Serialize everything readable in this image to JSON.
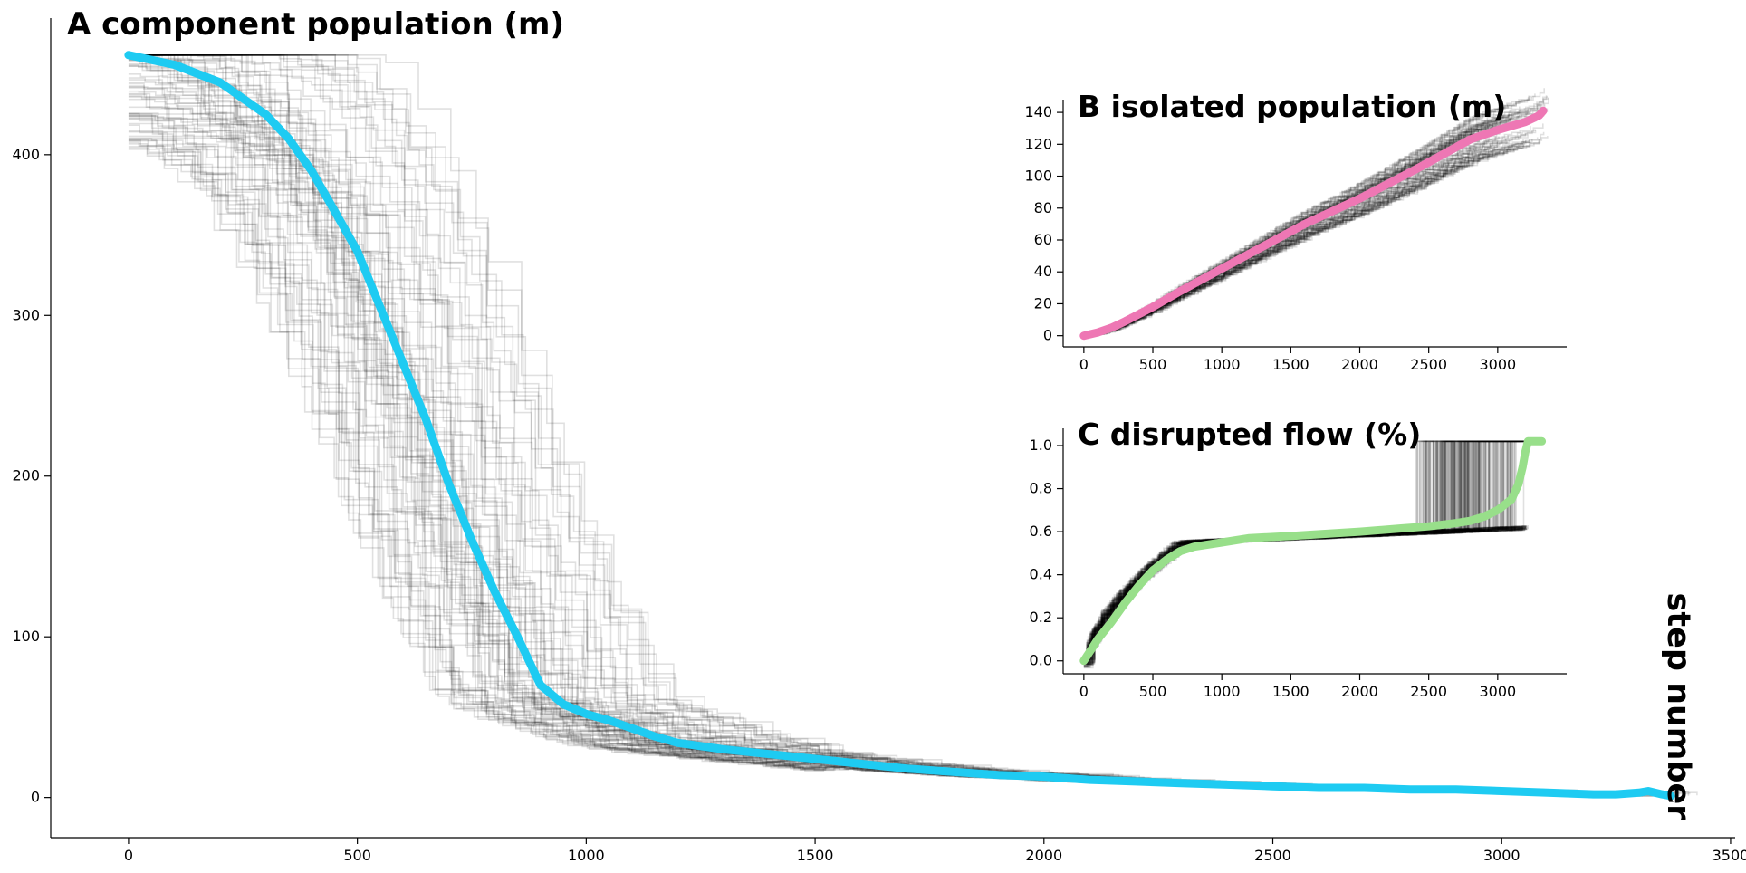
{
  "chart_data": [
    {
      "type": "line",
      "title": "A component population (m)",
      "xlabel": "step number",
      "ylabel": "",
      "xlim": [
        -170,
        3510
      ],
      "ylim": [
        -25,
        485
      ],
      "xticks": [
        0,
        500,
        1000,
        1500,
        2000,
        2500,
        3000,
        3500
      ],
      "yticks": [
        0,
        100,
        200,
        300,
        400
      ],
      "grid": false,
      "series": [
        {
          "color": "#1ecbf2",
          "x": [
            0,
            100,
            200,
            300,
            350,
            400,
            450,
            500,
            550,
            600,
            650,
            700,
            750,
            800,
            850,
            900,
            950,
            1000,
            1050,
            1100,
            1150,
            1200,
            1300,
            1400,
            1500,
            1600,
            1700,
            1800,
            1900,
            2000,
            2100,
            2200,
            2300,
            2400,
            2500,
            2600,
            2700,
            2800,
            2900,
            3000,
            3100,
            3200,
            3250,
            3300,
            3320,
            3350,
            3370
          ],
          "y": [
            462,
            456,
            445,
            425,
            410,
            390,
            365,
            340,
            305,
            270,
            235,
            195,
            160,
            128,
            100,
            70,
            58,
            52,
            48,
            43,
            38,
            34,
            30,
            27,
            24,
            21,
            18,
            16,
            14,
            13,
            11,
            10,
            9,
            8,
            7,
            6,
            6,
            5,
            5,
            4,
            3,
            2,
            2,
            3,
            4,
            2,
            1
          ]
        }
      ],
      "ensemble": "approximately 100 gray step-function trajectories around the highlighted series"
    },
    {
      "type": "line",
      "title": "B isolated population (m)",
      "xlim": [
        -150,
        3500
      ],
      "ylim": [
        -7,
        148
      ],
      "xticks": [
        0,
        500,
        1000,
        1500,
        2000,
        2500,
        3000
      ],
      "yticks": [
        0,
        20,
        40,
        60,
        80,
        100,
        120,
        140
      ],
      "grid": false,
      "series": [
        {
          "color": "#ee77b4",
          "x": [
            0,
            100,
            200,
            300,
            500,
            700,
            1000,
            1300,
            1600,
            2000,
            2400,
            2800,
            3000,
            3200,
            3300,
            3330
          ],
          "y": [
            0,
            2,
            5,
            9,
            18,
            28,
            42,
            56,
            70,
            86,
            104,
            123,
            129,
            134,
            138,
            141
          ]
        }
      ],
      "ensemble": "approximately 100 gray trajectories around the highlighted series"
    },
    {
      "type": "line",
      "title": "C disrupted flow (%)",
      "xlim": [
        -150,
        3500
      ],
      "ylim": [
        -0.06,
        1.08
      ],
      "xticks": [
        0,
        500,
        1000,
        1500,
        2000,
        2500,
        3000
      ],
      "yticks": [
        0.0,
        0.2,
        0.4,
        0.6,
        0.8,
        1.0
      ],
      "grid": false,
      "series": [
        {
          "color": "#98df8a",
          "x": [
            0,
            50,
            100,
            200,
            300,
            400,
            500,
            600,
            700,
            800,
            1000,
            1200,
            1500,
            2000,
            2300,
            2500,
            2700,
            2800,
            2900,
            3000,
            3100,
            3150,
            3180,
            3200,
            3220,
            3250,
            3320
          ],
          "y": [
            0.0,
            0.05,
            0.1,
            0.18,
            0.27,
            0.35,
            0.42,
            0.47,
            0.51,
            0.53,
            0.55,
            0.57,
            0.58,
            0.6,
            0.615,
            0.625,
            0.64,
            0.65,
            0.67,
            0.7,
            0.75,
            0.82,
            0.9,
            0.97,
            1.02,
            1.02,
            1.02
          ]
        }
      ],
      "ensemble": "approximately 100 gray trajectories around the highlighted series"
    }
  ]
}
